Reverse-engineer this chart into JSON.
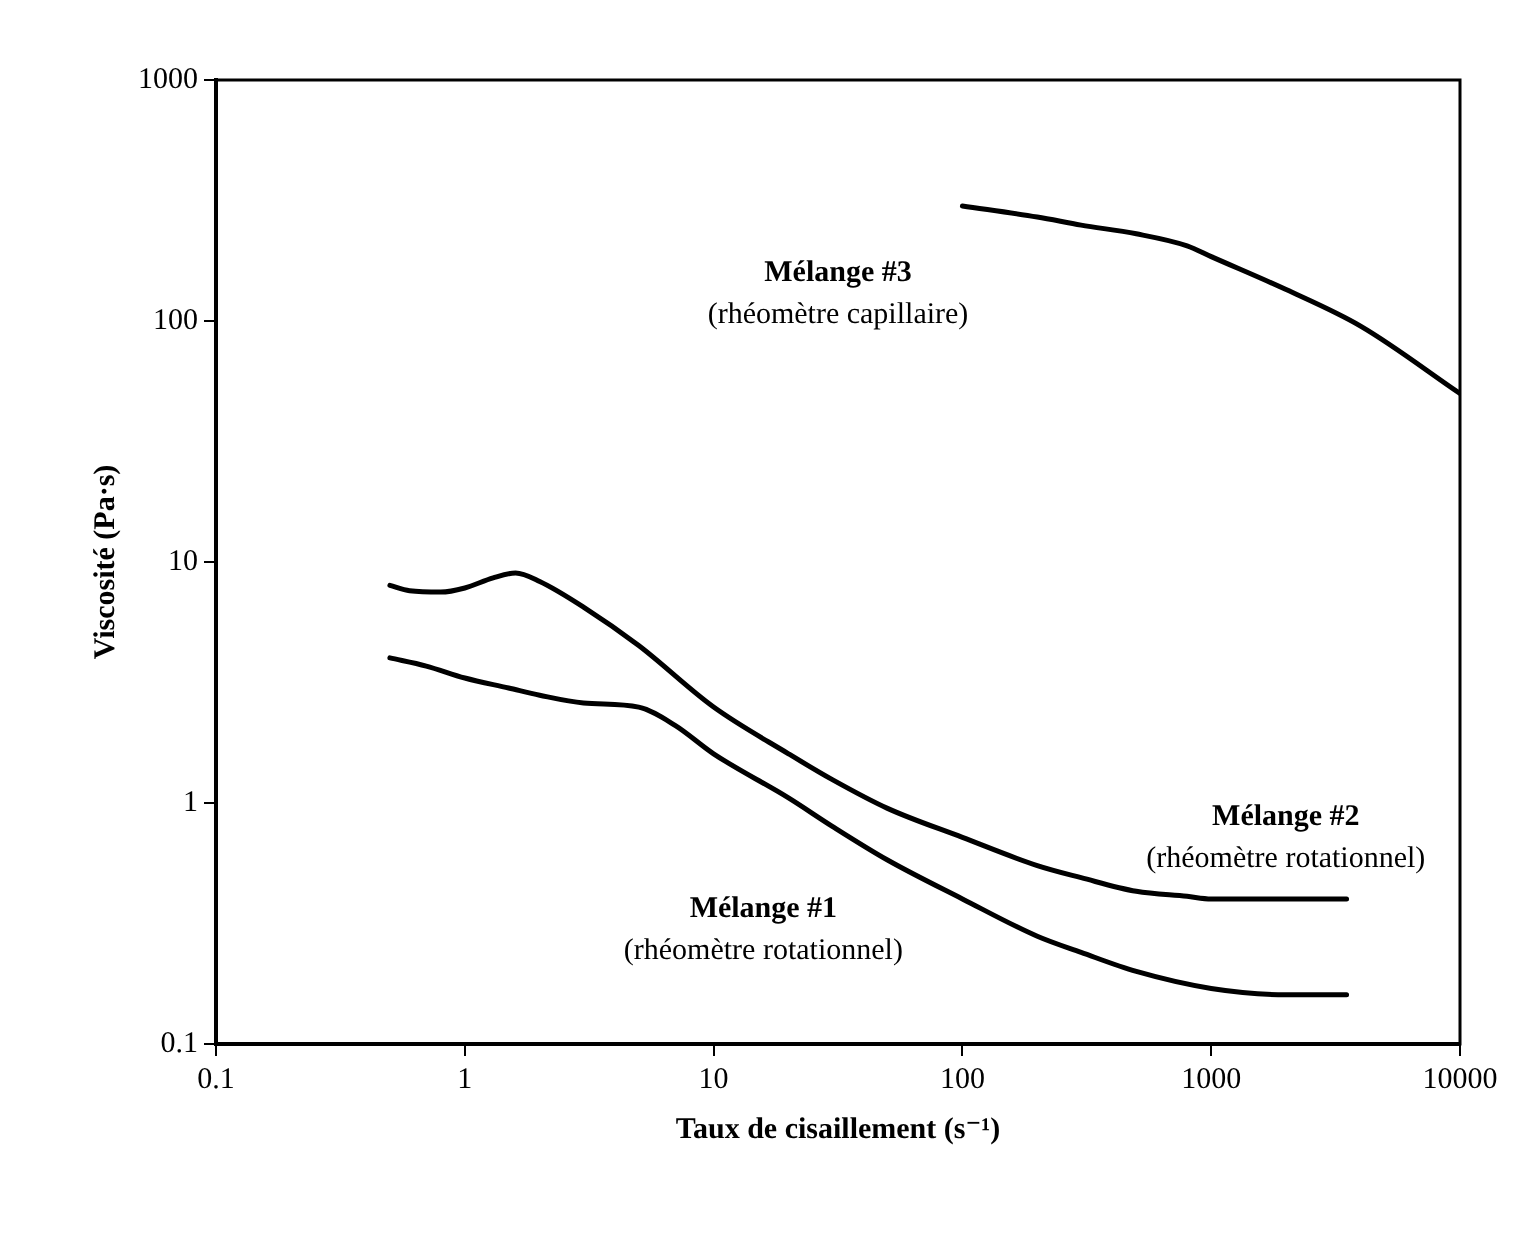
{
  "chart_data": {
    "type": "line",
    "xlabel": "Taux de cisaillement (s⁻¹)",
    "ylabel": "Viscosité (Pa·s)",
    "log": "xy",
    "grid": false,
    "legend": false,
    "marker": "none",
    "line_style": "solid",
    "xlim": [
      0.1,
      10000
    ],
    "xticks": [
      0.1,
      1,
      10,
      100,
      1000,
      10000
    ],
    "ylim": [
      0.1,
      1000
    ],
    "yticks": [
      0.1,
      1,
      10,
      100,
      1000
    ],
    "series": [
      {
        "name": "Mélange #1",
        "color": "#000000",
        "x": [
          0.5,
          0.7,
          1,
          1.5,
          2,
          3,
          5,
          7,
          10,
          20,
          30,
          50,
          100,
          200,
          300,
          500,
          1000,
          2000,
          3500
        ],
        "values": [
          4,
          3.7,
          3.3,
          3,
          2.8,
          2.6,
          2.5,
          2.1,
          1.6,
          1.05,
          0.8,
          0.58,
          0.4,
          0.28,
          0.24,
          0.2,
          0.17,
          0.16,
          0.16
        ]
      },
      {
        "name": "Mélange #2",
        "color": "#000000",
        "x": [
          0.5,
          0.6,
          0.8,
          1,
          1.3,
          1.6,
          2,
          3,
          5,
          10,
          20,
          30,
          50,
          100,
          200,
          300,
          500,
          800,
          1000,
          2000,
          3500
        ],
        "values": [
          8,
          7.6,
          7.5,
          7.8,
          8.6,
          9,
          8.3,
          6.5,
          4.5,
          2.5,
          1.6,
          1.25,
          0.95,
          0.72,
          0.55,
          0.49,
          0.43,
          0.41,
          0.4,
          0.4,
          0.4
        ]
      },
      {
        "name": "Mélange #3",
        "color": "#000000",
        "x": [
          100,
          200,
          300,
          500,
          800,
          1000,
          2000,
          4000,
          10000
        ],
        "values": [
          300,
          270,
          250,
          230,
          205,
          185,
          135,
          95,
          50
        ]
      }
    ],
    "annotations": [
      "(rhéomètre rotationnel)",
      "(rhéomètre rotationnel)",
      "(rhéomètre capillaire)"
    ]
  }
}
